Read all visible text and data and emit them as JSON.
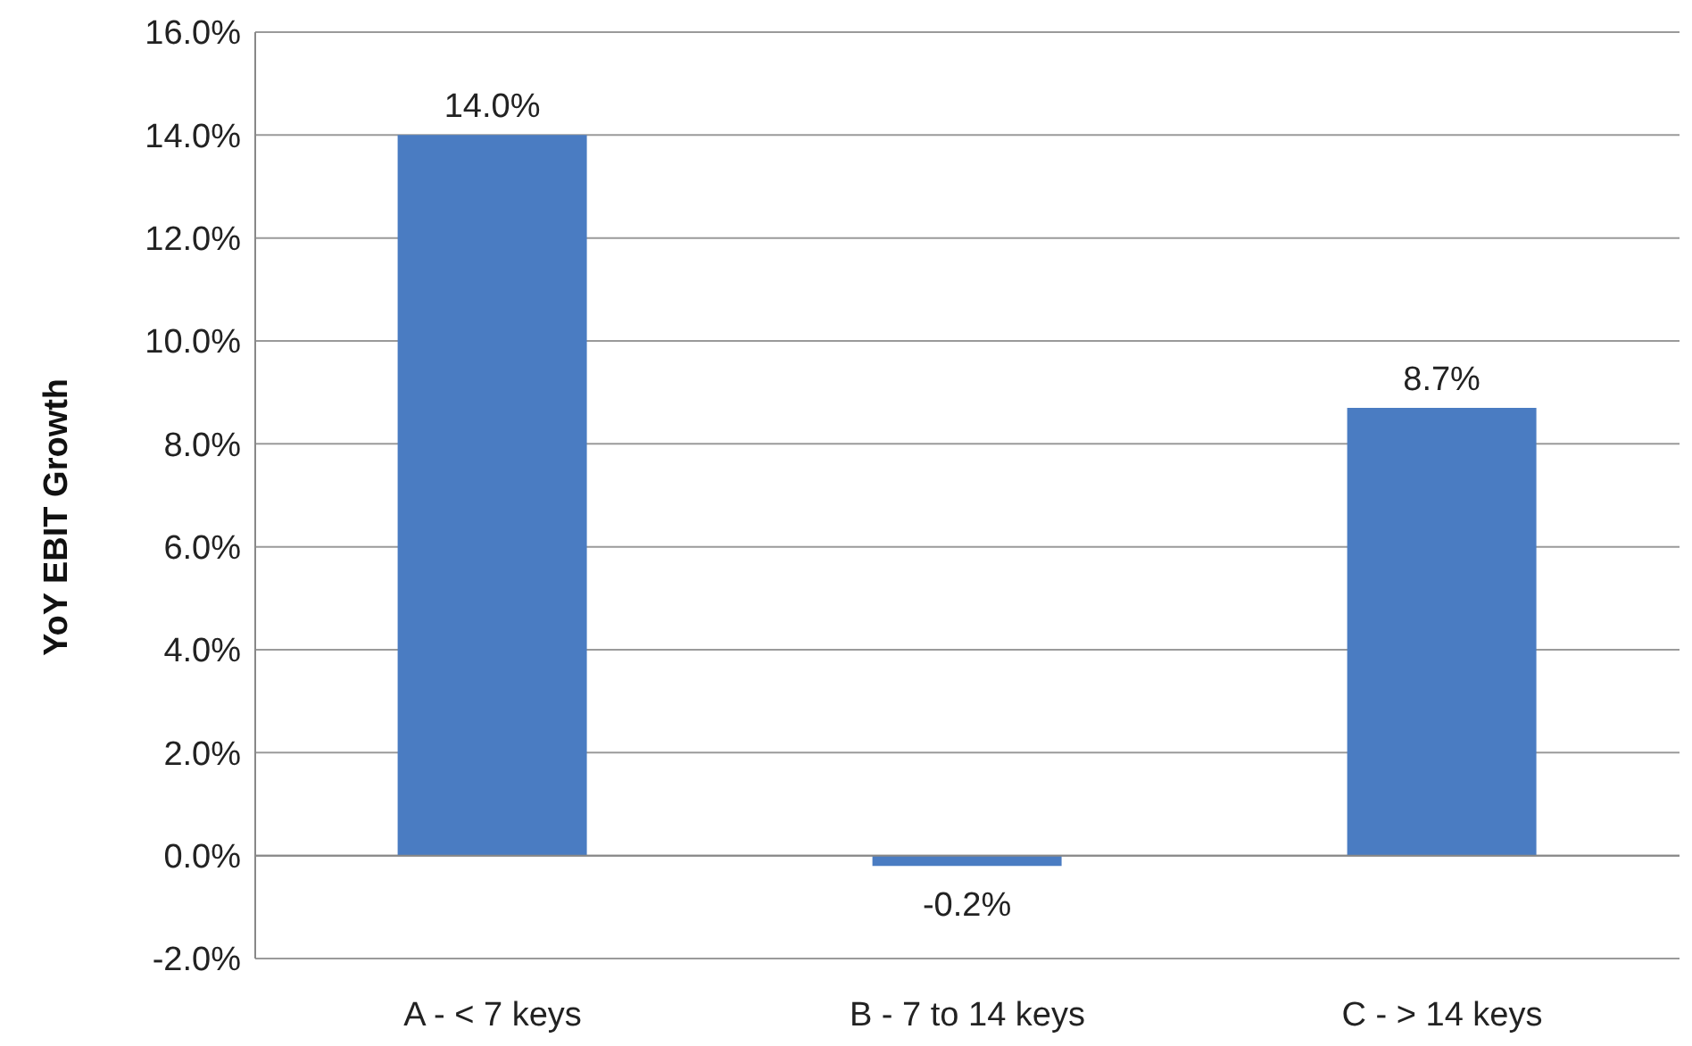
{
  "chart_data": {
    "type": "bar",
    "ylabel": "YoY EBIT Growth",
    "categories": [
      "A - < 7 keys",
      "B - 7 to 14 keys",
      "C - > 14 keys"
    ],
    "values": [
      14.0,
      -0.2,
      8.7
    ],
    "color": "#4a7cc2",
    "value_labels": [
      "14.0%",
      "-0.2%",
      "8.7%"
    ],
    "ylim": [
      -2,
      16
    ],
    "yticks": [
      {
        "value": -2,
        "label": "-2.0%"
      },
      {
        "value": 0,
        "label": "0.0%"
      },
      {
        "value": 2,
        "label": "2.0%"
      },
      {
        "value": 4,
        "label": "4.0%"
      },
      {
        "value": 6,
        "label": "6.0%"
      },
      {
        "value": 8,
        "label": "8.0%"
      },
      {
        "value": 10,
        "label": "10.0%"
      },
      {
        "value": 12,
        "label": "12.0%"
      },
      {
        "value": 14,
        "label": "14.0%"
      },
      {
        "value": 16,
        "label": "16.0%"
      }
    ],
    "grid": "y"
  }
}
